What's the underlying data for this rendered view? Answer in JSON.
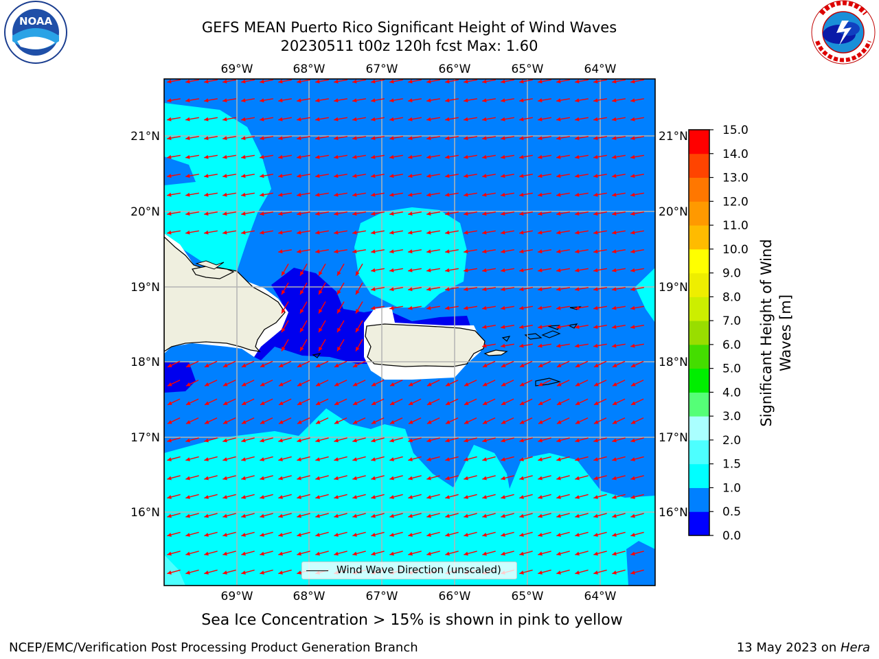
{
  "header": {
    "title_line1": "GEFS MEAN Puerto Rico Significant Height of Wind Waves",
    "title_line2": "20230511 t00z 120h fcst   Max: 1.60"
  },
  "logos": {
    "noaa": {
      "text": "NOAA",
      "icon": "noaa-logo"
    },
    "nws": {
      "icon": "nws-logo"
    }
  },
  "axes": {
    "lon_labels": [
      "69°W",
      "68°W",
      "67°W",
      "66°W",
      "65°W",
      "64°W"
    ],
    "lat_labels": [
      "21°N",
      "20°N",
      "19°N",
      "18°N",
      "17°N",
      "16°N"
    ]
  },
  "legend": {
    "label": "Wind Wave Direction (unscaled)"
  },
  "colorbar": {
    "label_line1": "Significant Height of Wind",
    "label_line2": "Waves [m]",
    "ticks": [
      "0.0",
      "0.5",
      "1.0",
      "1.5",
      "2.0",
      "3.0",
      "4.0",
      "5.0",
      "6.0",
      "7.0",
      "8.0",
      "9.0",
      "10.0",
      "11.0",
      "12.0",
      "13.0",
      "14.0",
      "15.0"
    ],
    "colors": [
      "#0000ff",
      "#0080ff",
      "#00ffff",
      "#4dffff",
      "#aaffff",
      "#55ff77",
      "#00ee00",
      "#44dd00",
      "#99dd00",
      "#ccee00",
      "#eeee00",
      "#ffff00",
      "#ffbb00",
      "#ff9900",
      "#ff7700",
      "#ff4400",
      "#ff0000"
    ]
  },
  "palette": {
    "ocean_low": "#0000ee",
    "ocean_mid": "#0080ff",
    "ocean_high": "#00ffff",
    "land": "#efefdf",
    "arrow": "#ff0000"
  },
  "notes": {
    "sea_ice": "Sea Ice Concentration > 15% is shown in pink to yellow"
  },
  "footer": {
    "left": "NCEP/EMC/Verification Post Processing Product Generation Branch",
    "right_prefix": "13 May 2023 on ",
    "right_host": "Hera"
  }
}
